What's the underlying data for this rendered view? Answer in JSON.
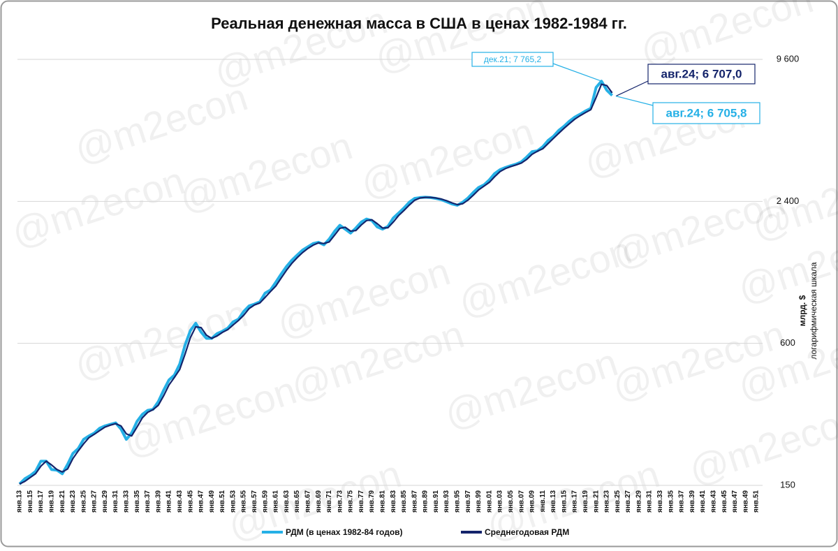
{
  "chart_data": {
    "type": "line",
    "title": "Реальная денежная масса в США в ценах 1982-1984 гг.",
    "y_label": "млрд. $",
    "y_sublabel": "логарифмическая шкала",
    "watermark": "@m2econ",
    "log_scale": true,
    "grid": true,
    "legend": "bottom",
    "ylim": [
      150,
      9600
    ],
    "yticks": [
      150,
      600,
      {
        "value": 2400,
        "label": "2 400"
      },
      {
        "value": 9600,
        "label": "9 600"
      }
    ],
    "categories": [
      "янв.13",
      null,
      "янв.15",
      null,
      "янв.17",
      null,
      "янв.19",
      null,
      "янв.21",
      null,
      "янв.23",
      null,
      "янв.25",
      null,
      "янв.27",
      null,
      "янв.29",
      null,
      "янв.31",
      null,
      "янв.33",
      null,
      "янв.35",
      null,
      "янв.37",
      null,
      "янв.39",
      null,
      "янв.41",
      null,
      "янв.43",
      null,
      "янв.45",
      null,
      "янв.47",
      null,
      "янв.49",
      null,
      "янв.51",
      null,
      "янв.53",
      null,
      "янв.55",
      null,
      "янв.57",
      null,
      "янв.59",
      null,
      "янв.61",
      null,
      "янв.63",
      null,
      "янв.65",
      null,
      "янв.67",
      null,
      "янв.69",
      null,
      "янв.71",
      null,
      "янв.73",
      null,
      "янв.75",
      null,
      "янв.77",
      null,
      "янв.79",
      null,
      "янв.81",
      null,
      "янв.83",
      null,
      "янв.85",
      null,
      "янв.87",
      null,
      "янв.89",
      null,
      "янв.91",
      null,
      "янв.93",
      null,
      "янв.95",
      null,
      "янв.97",
      null,
      "янв.99",
      null,
      "янв.01",
      null,
      "янв.03",
      null,
      "янв.05",
      null,
      "янв.07",
      null,
      "янв.09",
      null,
      "янв.11",
      null,
      "янв.13",
      null,
      "янв.15",
      null,
      "янв.17",
      null,
      "янв.19",
      null,
      "янв.21",
      null,
      "янв.23",
      null,
      "янв.25",
      null,
      "янв.27",
      null,
      "янв.29",
      null,
      "янв.31",
      null,
      "янв.33",
      null,
      "янв.35",
      null,
      "янв.37",
      null,
      "янв.39",
      null,
      "янв.41",
      null,
      "янв.43",
      null,
      "янв.45",
      null,
      "янв.47",
      null,
      "янв.49",
      null,
      "янв.51"
    ],
    "series": [
      {
        "name": "РДМ (в ценах 1982-84 годов)",
        "color": "#25b0e6",
        "values": [
          152,
          160,
          165,
          172,
          190,
          190,
          175,
          174,
          168,
          184,
          205,
          215,
          235,
          243,
          250,
          262,
          268,
          272,
          276,
          260,
          235,
          250,
          280,
          300,
          312,
          315,
          340,
          380,
          420,
          440,
          490,
          590,
          680,
          730,
          670,
          630,
          630,
          660,
          675,
          696,
          740,
          760,
          820,
          865,
          880,
          900,
          980,
          1010,
          1090,
          1180,
          1270,
          1350,
          1420,
          1490,
          1540,
          1590,
          1610,
          1570,
          1660,
          1790,
          1900,
          1830,
          1760,
          1850,
          1960,
          2020,
          1990,
          1870,
          1830,
          1880,
          2040,
          2140,
          2250,
          2380,
          2470,
          2490,
          2500,
          2490,
          2470,
          2440,
          2390,
          2340,
          2310,
          2380,
          2480,
          2620,
          2750,
          2820,
          2960,
          3150,
          3270,
          3340,
          3400,
          3450,
          3530,
          3700,
          3900,
          3930,
          4090,
          4350,
          4530,
          4800,
          5000,
          5250,
          5460,
          5620,
          5800,
          5950,
          7300,
          7760,
          7100,
          6750,
          null,
          null,
          null,
          null,
          null,
          null,
          null,
          null,
          null,
          null,
          null,
          null,
          null,
          null,
          null,
          null,
          null,
          null,
          null,
          null,
          null,
          null,
          null,
          null,
          null,
          null,
          null
        ]
      },
      {
        "name": "Среднегодовая РДМ",
        "color": "#14246b",
        "values": [
          152,
          156,
          162,
          168,
          181,
          190,
          183,
          175,
          171,
          176,
          195,
          210,
          225,
          239,
          247,
          256,
          265,
          270,
          274,
          268,
          248,
          243,
          265,
          290,
          306,
          314,
          328,
          360,
          400,
          430,
          465,
          540,
          635,
          705,
          700,
          650,
          630,
          645,
          668,
          686,
          718,
          750,
          790,
          843,
          873,
          890,
          940,
          995,
          1050,
          1135,
          1225,
          1310,
          1385,
          1455,
          1515,
          1565,
          1600,
          1590,
          1615,
          1725,
          1845,
          1865,
          1795,
          1805,
          1905,
          1990,
          2005,
          1930,
          1850,
          1855,
          1960,
          2090,
          2195,
          2315,
          2425,
          2480,
          2495,
          2495,
          2480,
          2455,
          2415,
          2365,
          2325,
          2345,
          2430,
          2550,
          2685,
          2785,
          2890,
          3055,
          3210,
          3305,
          3370,
          3425,
          3490,
          3615,
          3800,
          3915,
          4010,
          4220,
          4440,
          4665,
          4900,
          5125,
          5355,
          5540,
          5710,
          5875,
          6625,
          7530,
          7430,
          6925,
          null,
          null,
          null,
          null,
          null,
          null,
          null,
          null,
          null,
          null,
          null,
          null,
          null,
          null,
          null,
          null,
          null,
          null,
          null,
          null,
          null,
          null,
          null,
          null,
          null,
          null,
          null
        ]
      }
    ],
    "annotations": [
      {
        "label": "дек.21; 7 765,2",
        "value": 7765.2
      },
      {
        "label": "авг.24; 6 707,0",
        "value": 6707.0
      },
      {
        "label": "авг.24; 6 705,8",
        "value": 6705.8
      }
    ]
  }
}
